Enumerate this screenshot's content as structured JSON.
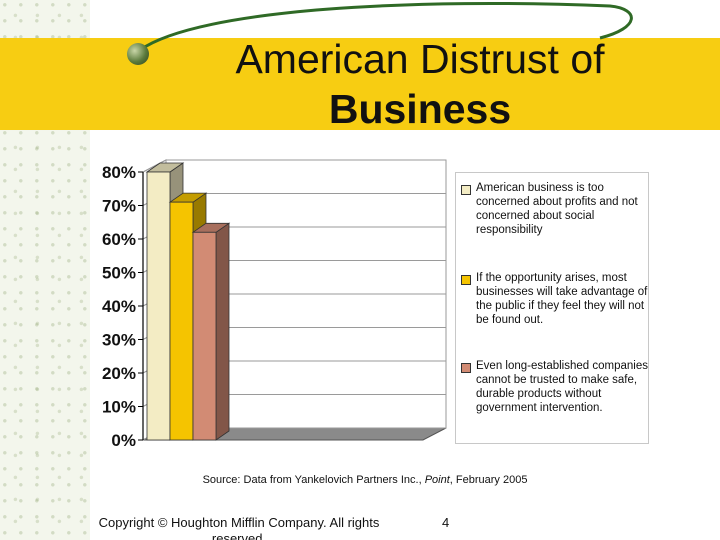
{
  "slide": {
    "title_line1": "American Distrust of",
    "title_line2": "Business",
    "source_prefix": "Source: Data from Yankelovich Partners Inc., ",
    "source_italic": "Point",
    "source_suffix": ", February 2005",
    "copyright": "Copyright © Houghton Mifflin Company.  All rights reserved.",
    "page_number": "4",
    "icon": "globe-icon"
  },
  "chart_data": {
    "type": "bar",
    "categories": [
      ""
    ],
    "series": [
      {
        "name": "American business is too concerned about profits and not concerned about social responsibility",
        "values": [
          80
        ],
        "color": "#f3ecc4"
      },
      {
        "name": "If the opportunity arises, most businesses will take advantage of the public if they feel they will not be found out.",
        "values": [
          71
        ],
        "color": "#f5c400"
      },
      {
        "name": "Even long-established companies cannot be trusted to make safe, durable products without government intervention.",
        "values": [
          62
        ],
        "color": "#d28b74"
      }
    ],
    "ylim": [
      0,
      80
    ],
    "y_ticks": [
      "0%",
      "10%",
      "20%",
      "30%",
      "40%",
      "50%",
      "60%",
      "70%",
      "80%"
    ],
    "grid": true,
    "legend_position": "right",
    "title": "",
    "xlabel": "",
    "ylabel": ""
  }
}
